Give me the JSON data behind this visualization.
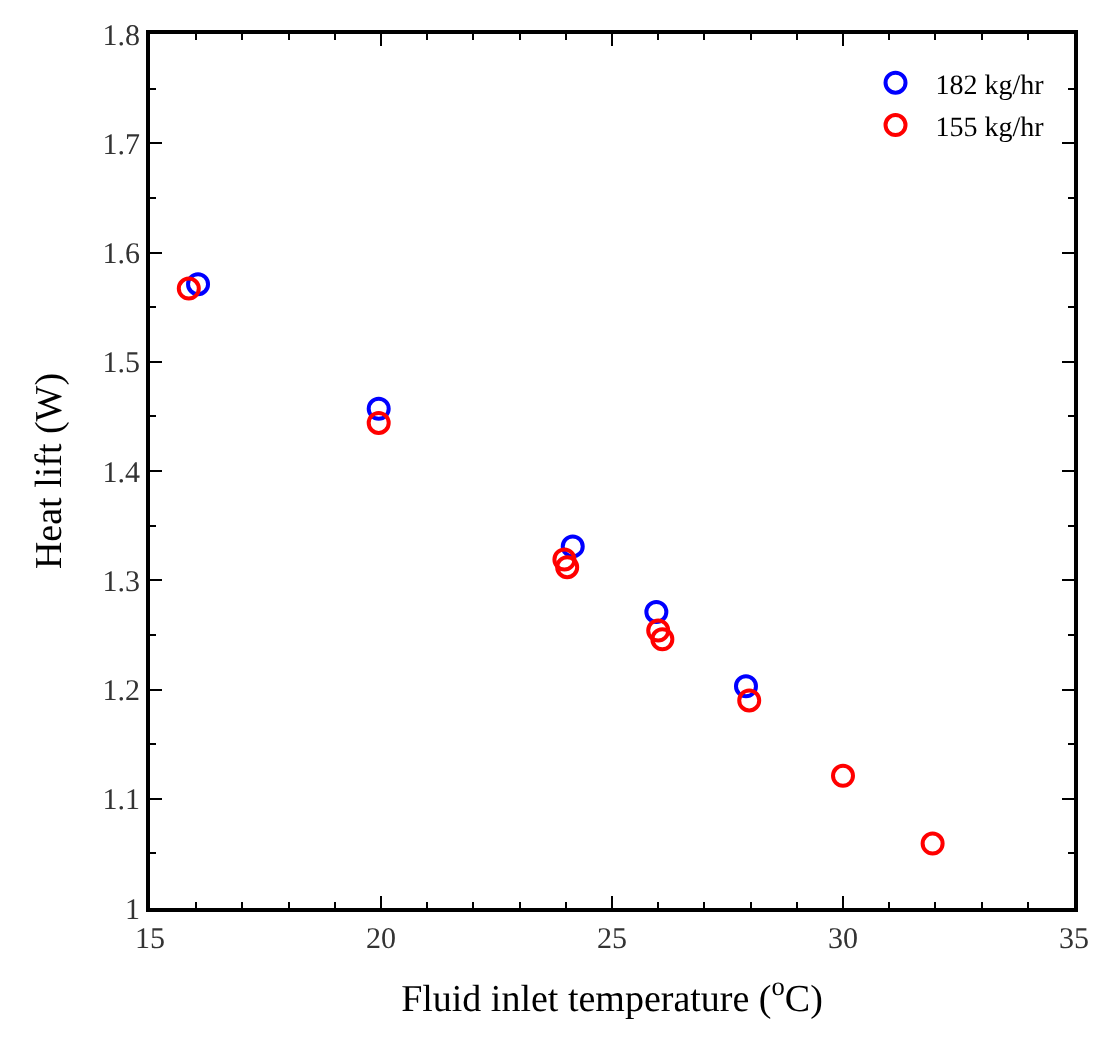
{
  "chart_data": {
    "type": "scatter",
    "xlabel": "Fluid inlet temperature ($^{o}$C)",
    "ylabel": "Heat lift (W)",
    "xlim": [
      15,
      35
    ],
    "xticks": [
      15,
      20,
      25,
      30,
      35
    ],
    "ylim": [
      1,
      1.8
    ],
    "yticks": [
      1,
      1.1,
      1.2,
      1.3,
      1.4,
      1.5,
      1.6,
      1.7,
      1.8
    ],
    "legend": "top right",
    "marker": "circle",
    "series": [
      {
        "name": "182 kg/hr",
        "color": "#0000ff",
        "x": [
          16.04,
          19.95,
          24.15,
          25.96,
          27.9
        ],
        "values": [
          1.571,
          1.457,
          1.331,
          1.271,
          1.203
        ]
      },
      {
        "name": "155 kg/hr",
        "color": "#ff0000",
        "x": [
          15.84,
          19.95,
          23.97,
          24.03,
          26.0,
          26.09,
          27.97,
          30.0,
          31.94
        ],
        "values": [
          1.567,
          1.444,
          1.319,
          1.312,
          1.254,
          1.246,
          1.19,
          1.121,
          1.059
        ]
      }
    ]
  }
}
